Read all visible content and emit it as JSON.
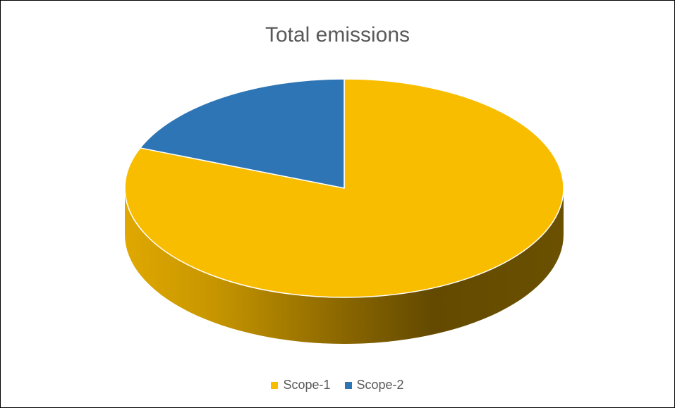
{
  "chart_data": {
    "type": "pie",
    "variant": "3d",
    "title": "Total emissions",
    "series": [
      {
        "name": "Scope-1",
        "value": 81,
        "color": "#f9bd00"
      },
      {
        "name": "Scope-2",
        "value": 19,
        "color": "#2e75b6"
      }
    ],
    "legend_position": "bottom"
  }
}
